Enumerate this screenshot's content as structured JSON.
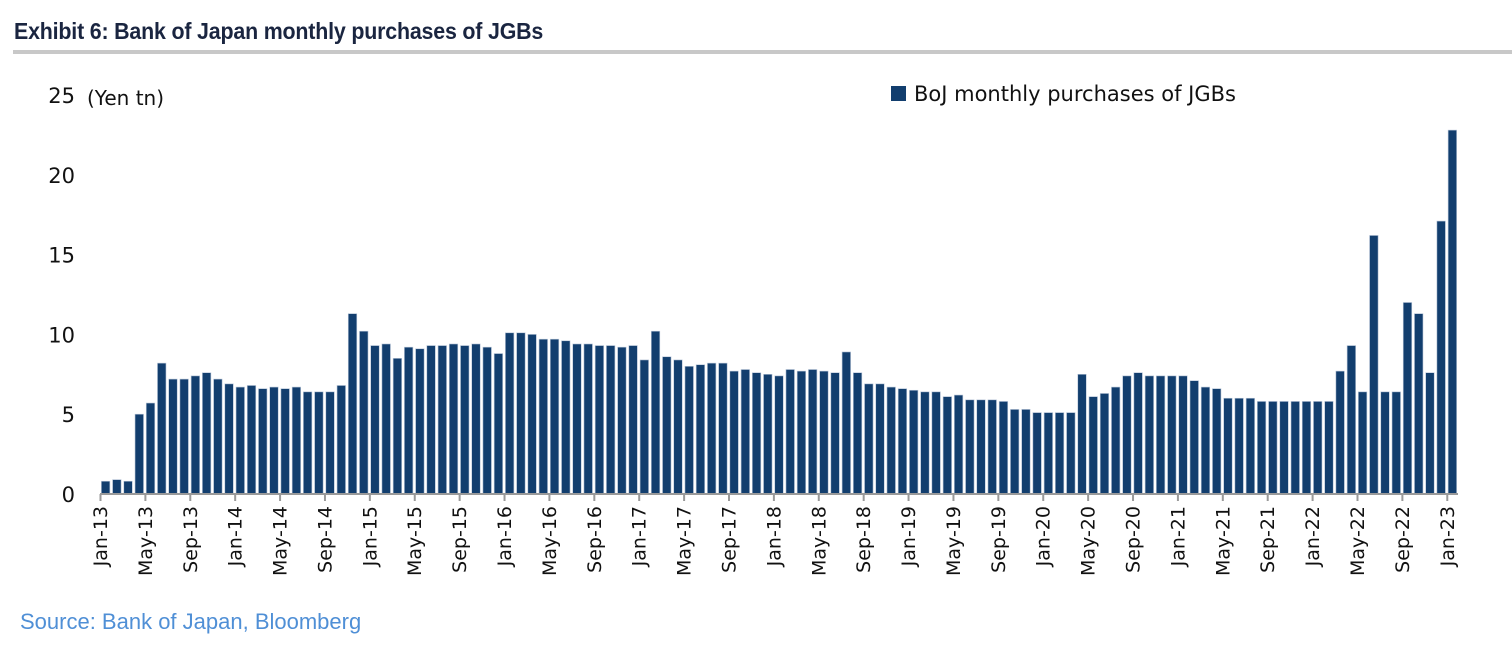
{
  "header": {
    "title": "Exhibit 6: Bank of Japan monthly purchases of JGBs"
  },
  "footer": {
    "source": "Source: Bank of Japan, Bloomberg"
  },
  "colors": {
    "bar": "#123e6e",
    "axis": "#999999",
    "source_text": "#4f8fd6",
    "title_text": "#1a2540"
  },
  "chart_data": {
    "type": "bar",
    "title": "Bank of Japan monthly purchases of JGBs",
    "xlabel": "",
    "ylabel": "(Yen tn)",
    "ylim": [
      0,
      25
    ],
    "yticks": [
      0,
      5,
      10,
      15,
      20,
      25
    ],
    "grid": false,
    "legend": {
      "position": "top-right",
      "entries": [
        "BoJ monthly purchases of JGBs"
      ]
    },
    "x_tick_labels": [
      "Jan-13",
      "May-13",
      "Sep-13",
      "Jan-14",
      "May-14",
      "Sep-14",
      "Jan-15",
      "May-15",
      "Sep-15",
      "Jan-16",
      "May-16",
      "Sep-16",
      "Jan-17",
      "May-17",
      "Sep-17",
      "Jan-18",
      "May-18",
      "Sep-18",
      "Jan-19",
      "May-19",
      "Sep-19",
      "Jan-20",
      "May-20",
      "Sep-20",
      "Jan-21",
      "May-21",
      "Sep-21",
      "Jan-22",
      "May-22",
      "Sep-22",
      "Jan-23"
    ],
    "x_tick_every_months": 4,
    "start_month": "Jan-13",
    "end_month": "Jan-23",
    "series": [
      {
        "name": "BoJ monthly purchases of JGBs",
        "values": [
          0.8,
          0.9,
          0.8,
          5.0,
          5.7,
          8.2,
          7.2,
          7.2,
          7.4,
          7.6,
          7.2,
          6.9,
          6.7,
          6.8,
          6.6,
          6.7,
          6.6,
          6.7,
          6.4,
          6.4,
          6.4,
          6.8,
          11.3,
          10.2,
          9.3,
          9.4,
          8.5,
          9.2,
          9.1,
          9.3,
          9.3,
          9.4,
          9.3,
          9.4,
          9.2,
          8.8,
          10.1,
          10.1,
          10.0,
          9.7,
          9.7,
          9.6,
          9.4,
          9.4,
          9.3,
          9.3,
          9.2,
          9.3,
          8.4,
          10.2,
          8.6,
          8.4,
          8.0,
          8.1,
          8.2,
          8.2,
          7.7,
          7.8,
          7.6,
          7.5,
          7.4,
          7.8,
          7.7,
          7.8,
          7.7,
          7.6,
          8.9,
          7.6,
          6.9,
          6.9,
          6.7,
          6.6,
          6.5,
          6.4,
          6.4,
          6.1,
          6.2,
          5.9,
          5.9,
          5.9,
          5.8,
          5.3,
          5.3,
          5.1,
          5.1,
          5.1,
          5.1,
          7.5,
          6.1,
          6.3,
          6.7,
          7.4,
          7.6,
          7.4,
          7.4,
          7.4,
          7.4,
          7.1,
          6.7,
          6.6,
          6.0,
          6.0,
          6.0,
          5.8,
          5.8,
          5.8,
          5.8,
          5.8,
          5.8,
          5.8,
          7.7,
          9.3,
          6.4,
          16.2,
          6.4,
          6.4,
          12.0,
          11.3,
          7.6,
          17.1,
          22.8
        ]
      }
    ]
  }
}
